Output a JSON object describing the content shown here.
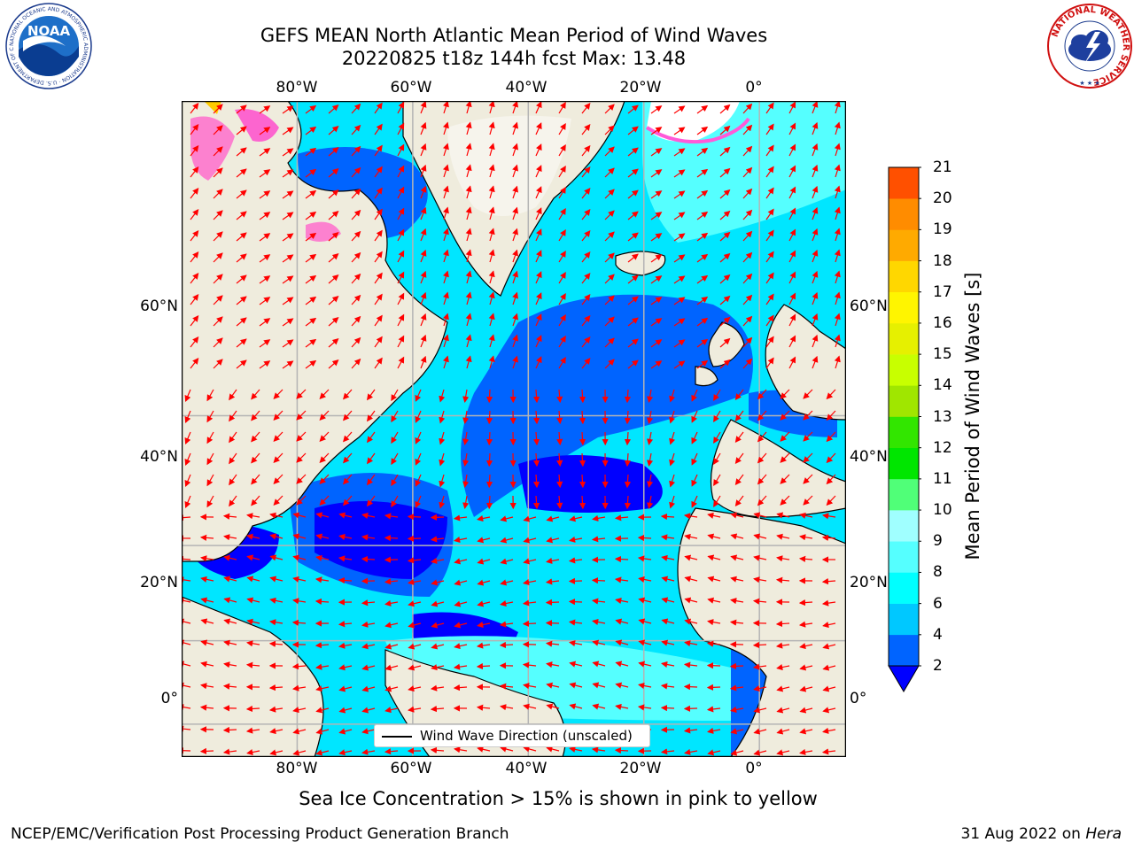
{
  "title": {
    "line1": "GEFS MEAN North Atlantic Mean Period of Wind Waves",
    "line2": "20220825 t18z 144h fcst   Max: 13.48"
  },
  "map": {
    "lon_labels": [
      "80°W",
      "60°W",
      "40°W",
      "20°W",
      "0°"
    ],
    "lat_labels": [
      "60°N",
      "40°N",
      "20°N",
      "0°"
    ],
    "lon_range": [
      -100,
      15
    ],
    "lat_range": [
      -8,
      82
    ],
    "land_color": "#efecdd",
    "vector_color": "#ff0000",
    "grid_color": "#b4b4b4"
  },
  "legend": {
    "label": "Wind Wave Direction (unscaled)"
  },
  "colorbar": {
    "label": "Mean Period of Wind Waves [s]",
    "ticks": [
      "2",
      "4",
      "6",
      "8",
      "9",
      "10",
      "11",
      "12",
      "13",
      "14",
      "15",
      "16",
      "17",
      "18",
      "19",
      "20",
      "21"
    ],
    "levels": [
      2,
      4,
      6,
      8,
      9,
      10,
      11,
      12,
      13,
      14,
      15,
      16,
      17,
      18,
      19,
      20,
      21
    ],
    "colors": [
      "#0064ff",
      "#00c8ff",
      "#00ffff",
      "#55ffff",
      "#a0ffff",
      "#50ff78",
      "#00e600",
      "#32e600",
      "#a0e600",
      "#c8ff00",
      "#e6f000",
      "#fff500",
      "#ffd700",
      "#ffaa00",
      "#ff8c00",
      "#ff5000",
      "#ff0000"
    ],
    "under_color": "#0000ff",
    "extend": "min"
  },
  "footer": {
    "note": "Sea Ice Concentration > 15% is shown in pink to yellow",
    "left": "NCEP/EMC/Verification Post Processing Product Generation Branch",
    "right_date": "31 Aug 2022 on ",
    "right_host": "Hera"
  },
  "logos": {
    "noaa_text": "NOAA",
    "noaa_ring_text": "NATIONAL OCEANIC AND ATMOSPHERIC ADMINISTRATION · U.S. DEPARTMENT OF COMMERCE",
    "nws_ring_text": "NATIONAL WEATHER SERVICE"
  }
}
